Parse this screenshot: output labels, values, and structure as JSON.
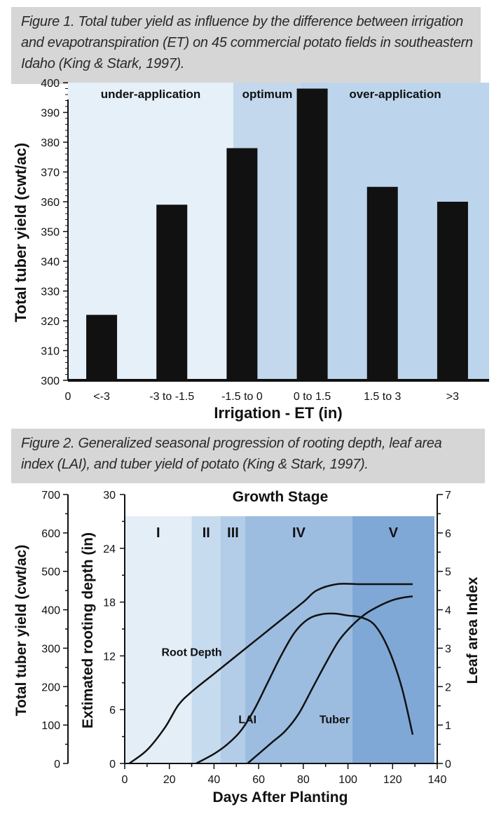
{
  "captions": {
    "figure1": "Figure 1. Total tuber yield as influence by the difference between irrigation and evapotranspiration (ET) on 45 commercial potato fields in southeastern Idaho (King & Stark, 1997).",
    "figure2": "Figure 2. Generalized seasonal progression of rooting depth, leaf area index (LAI), and tuber yield of potato (King & Stark, 1997)."
  },
  "chart_data": [
    {
      "type": "bar",
      "title": "",
      "xlabel": "Irrigation - ET (in)",
      "ylabel": "Total tuber yield (cwt/ac)",
      "x_origin_label": "0",
      "categories": [
        "<-3",
        "-3 to -1.5",
        "-1.5 to 0",
        "0 to 1.5",
        "1.5 to 3",
        ">3"
      ],
      "values": [
        322,
        359,
        378,
        398,
        365,
        360
      ],
      "ylim": [
        300,
        400
      ],
      "yticks": [
        300,
        310,
        320,
        330,
        340,
        350,
        360,
        370,
        380,
        390,
        400
      ],
      "regions": [
        {
          "label": "under-application",
          "categories": [
            "<-3",
            "-3 to -1.5",
            "-1.5 to 0"
          ],
          "color": "#e6f0f8"
        },
        {
          "label": "optimum",
          "categories": [
            "-1.5 to 0",
            "0 to 1.5"
          ],
          "color": "#c3d8ec"
        },
        {
          "label": "over-application",
          "categories": [
            "0 to 1.5",
            "1.5 to 3",
            ">3"
          ],
          "color": "#bcd5ec"
        }
      ],
      "bar_color": "#111111",
      "grid": false
    },
    {
      "type": "line",
      "title": "Growth Stage",
      "xlabel": "Days After Planting",
      "xlim": [
        0,
        140
      ],
      "xticks": [
        0,
        20,
        40,
        60,
        80,
        100,
        120,
        140
      ],
      "axes": {
        "yield": {
          "label": "Total tuber yield (cwt/ac)",
          "lim": [
            0,
            700
          ],
          "ticks": [
            0,
            100,
            200,
            300,
            400,
            500,
            600,
            700
          ]
        },
        "rooting": {
          "label": "Extimated rooting depth (in)",
          "lim": [
            0,
            30
          ],
          "ticks": [
            0,
            6,
            12,
            18,
            24,
            30
          ]
        },
        "lai": {
          "label": "Leaf area Index",
          "lim": [
            0,
            7
          ],
          "ticks": [
            0,
            1,
            2,
            3,
            4,
            5,
            6,
            7
          ]
        }
      },
      "stages": [
        {
          "label": "I",
          "start": 0,
          "end": 30,
          "color": "#e4eef7"
        },
        {
          "label": "II",
          "start": 30,
          "end": 43,
          "color": "#c7dbef"
        },
        {
          "label": "III",
          "start": 43,
          "end": 54,
          "color": "#b3cde8"
        },
        {
          "label": "IV",
          "start": 54,
          "end": 102,
          "color": "#9cbde0"
        },
        {
          "label": "V",
          "start": 102,
          "end": 140,
          "color": "#7fa8d6"
        }
      ],
      "series": [
        {
          "name": "Root Depth",
          "axis": "rooting",
          "x": [
            2,
            10,
            18,
            24,
            30,
            40,
            50,
            60,
            70,
            80,
            86,
            95,
            105,
            115,
            129
          ],
          "y": [
            0,
            1.5,
            4,
            6.5,
            8,
            10,
            12,
            14,
            16,
            18,
            19.3,
            20,
            20,
            20,
            20
          ]
        },
        {
          "name": "LAI",
          "axis": "lai",
          "x": [
            32,
            40,
            46,
            52,
            58,
            64,
            70,
            76,
            82,
            88,
            94,
            100,
            106,
            112,
            118,
            124,
            129
          ],
          "y": [
            0,
            0.25,
            0.5,
            0.85,
            1.4,
            2.1,
            2.8,
            3.4,
            3.75,
            3.88,
            3.9,
            3.85,
            3.8,
            3.6,
            3.0,
            2.0,
            0.75
          ]
        },
        {
          "name": "Tuber",
          "axis": "yield",
          "x": [
            55,
            60,
            66,
            72,
            78,
            84,
            90,
            96,
            102,
            108,
            114,
            120,
            125,
            129
          ],
          "y": [
            0,
            25,
            55,
            85,
            130,
            195,
            260,
            320,
            360,
            390,
            410,
            425,
            432,
            435
          ]
        }
      ],
      "curve_labels": [
        {
          "name": "Root Depth",
          "x": 30,
          "y_axis": "rooting",
          "y": 12
        },
        {
          "name": "LAI",
          "x": 55,
          "y_axis": "lai",
          "y": 1.05
        },
        {
          "name": "Tuber",
          "x": 94,
          "y_axis": "lai",
          "y": 1.05
        }
      ],
      "grid": false
    }
  ]
}
